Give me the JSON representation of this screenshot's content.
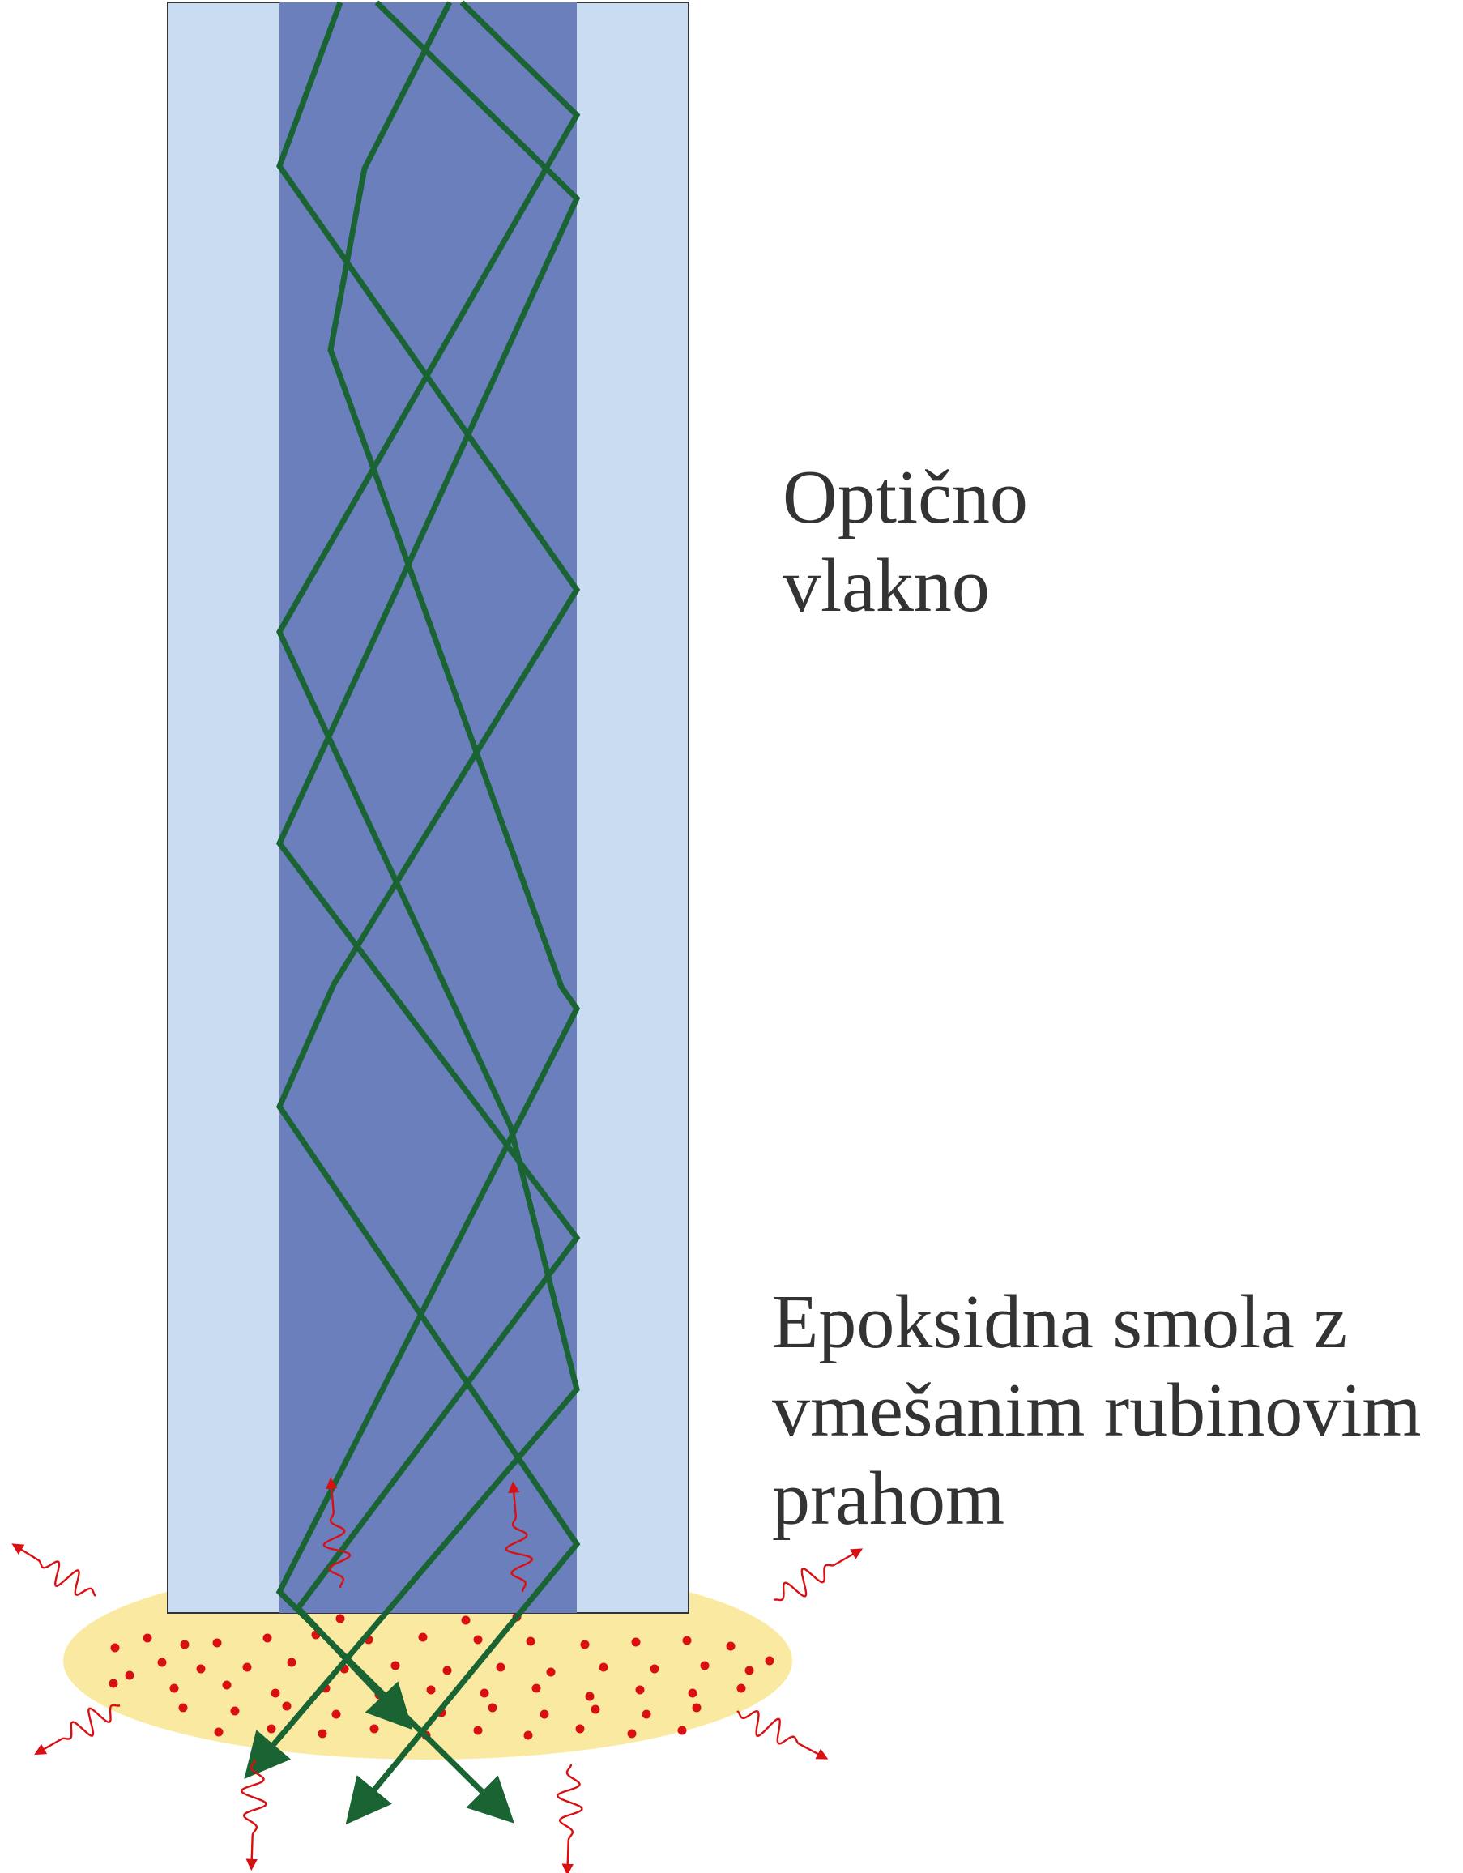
{
  "labels": {
    "fiber": [
      "Optično",
      "vlakno"
    ],
    "epoxy": [
      "Epoksidna smola z",
      "vmešanim rubinovim",
      "prahom"
    ]
  },
  "colors": {
    "cladding": "#cadcf2",
    "core": "#6b7fbd",
    "ray": "#1a6333",
    "resin": "#faeaa1",
    "ruby_particle": "#d90f12",
    "emission": "#d90f12",
    "outline": "#333333",
    "text": "#333333"
  },
  "icons": {
    "ray": "green-arrow",
    "emission": "red-wavy-arrow",
    "particle": "red-dot"
  }
}
